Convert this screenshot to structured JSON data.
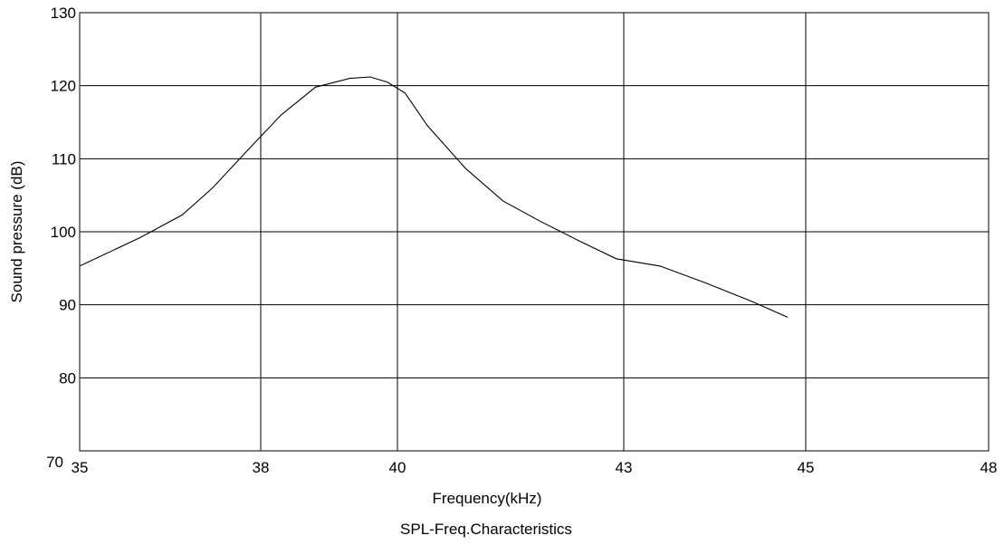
{
  "chart_data": {
    "type": "line",
    "caption": "SPL-Freq.Characteristics",
    "xlabel": "Frequency(kHz)",
    "ylabel": "Sound pressure (dB)",
    "x_ticks": [
      "35",
      "38",
      "40",
      "43",
      "45",
      "48"
    ],
    "y_ticks": [
      "70",
      "80",
      "90",
      "100",
      "110",
      "120",
      "130"
    ],
    "ylim": [
      70,
      130
    ],
    "grid": true,
    "series": [
      {
        "x": [
          35.0,
          36.0,
          36.7,
          37.2,
          37.8,
          38.3,
          38.8,
          39.3,
          39.6,
          39.85,
          40.1,
          40.4,
          40.9,
          41.4,
          41.9,
          42.4,
          42.9,
          43.4,
          43.9,
          44.4,
          44.8
        ],
        "y": [
          95.3,
          99.2,
          102.3,
          106.0,
          111.3,
          116.0,
          119.8,
          121.0,
          121.2,
          120.5,
          119.0,
          114.5,
          108.7,
          104.2,
          101.4,
          98.8,
          96.3,
          95.3,
          93.0,
          90.5,
          88.3
        ]
      }
    ]
  }
}
